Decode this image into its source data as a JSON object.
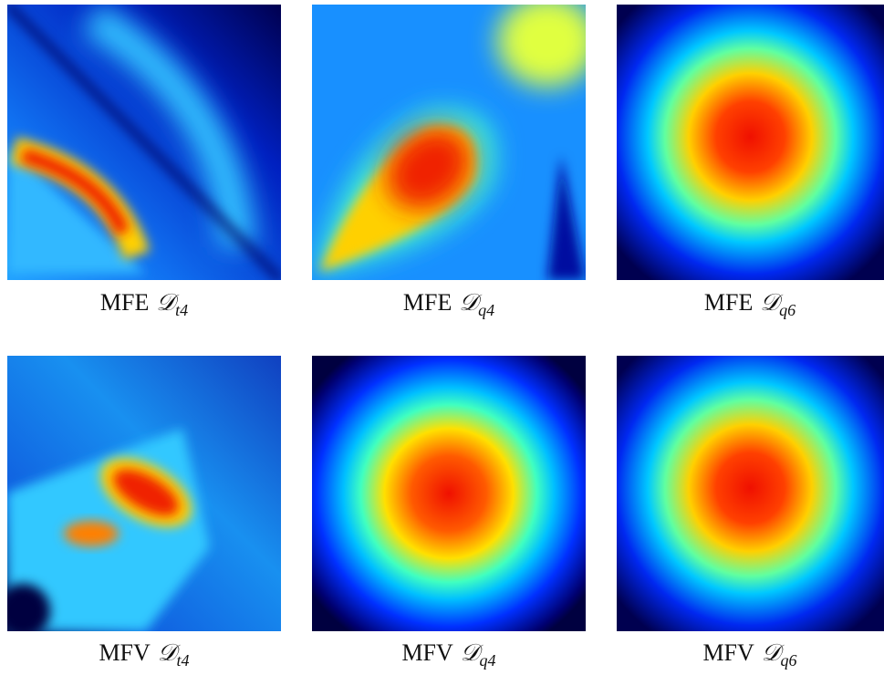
{
  "panels": [
    {
      "method": "MFE",
      "symbol": "𝒟",
      "sub": "t4"
    },
    {
      "method": "MFE",
      "symbol": "𝒟",
      "sub": "q4"
    },
    {
      "method": "MFE",
      "symbol": "𝒟",
      "sub": "q6"
    },
    {
      "method": "MFV",
      "symbol": "𝒟",
      "sub": "t4"
    },
    {
      "method": "MFV",
      "symbol": "𝒟",
      "sub": "q4"
    },
    {
      "method": "MFV",
      "symbol": "𝒟",
      "sub": "q6"
    }
  ]
}
